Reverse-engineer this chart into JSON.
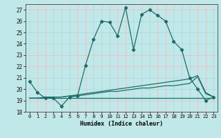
{
  "xlabel": "Humidex (Indice chaleur)",
  "bg_color": "#c0e8e8",
  "grid_color": "#b0d8d8",
  "line_color": "#1a6e6a",
  "x": [
    0,
    1,
    2,
    3,
    4,
    5,
    6,
    7,
    8,
    9,
    10,
    11,
    12,
    13,
    14,
    15,
    16,
    17,
    18,
    19,
    20,
    21,
    22,
    23
  ],
  "y_main": [
    20.7,
    19.7,
    19.2,
    19.2,
    18.5,
    19.3,
    19.4,
    22.1,
    24.4,
    26.0,
    25.9,
    24.7,
    27.2,
    23.5,
    26.6,
    27.0,
    26.5,
    26.0,
    24.2,
    23.5,
    21.0,
    20.0,
    19.0,
    19.3
  ],
  "y_flat": [
    19.2,
    19.2,
    19.2,
    19.2,
    19.2,
    19.2,
    19.2,
    19.2,
    19.2,
    19.2,
    19.2,
    19.2,
    19.2,
    19.2,
    19.2,
    19.2,
    19.2,
    19.2,
    19.2,
    19.2,
    19.2,
    19.2,
    19.2,
    19.2
  ],
  "y_slope1": [
    19.2,
    19.2,
    19.3,
    19.3,
    19.3,
    19.4,
    19.4,
    19.5,
    19.6,
    19.7,
    19.8,
    19.8,
    19.9,
    20.0,
    20.1,
    20.1,
    20.2,
    20.3,
    20.3,
    20.4,
    20.5,
    21.1,
    19.6,
    19.3
  ],
  "y_slope2": [
    19.2,
    19.2,
    19.2,
    19.3,
    19.3,
    19.4,
    19.5,
    19.6,
    19.7,
    19.8,
    19.9,
    20.0,
    20.1,
    20.2,
    20.3,
    20.4,
    20.5,
    20.6,
    20.7,
    20.8,
    20.9,
    21.2,
    19.7,
    19.3
  ],
  "ylim": [
    18,
    27.5
  ],
  "xlim": [
    -0.5,
    23.5
  ],
  "yticks": [
    18,
    19,
    20,
    21,
    22,
    23,
    24,
    25,
    26,
    27
  ],
  "xticks": [
    0,
    1,
    2,
    3,
    4,
    5,
    6,
    7,
    8,
    9,
    10,
    11,
    12,
    13,
    14,
    15,
    16,
    17,
    18,
    19,
    20,
    21,
    22,
    23
  ]
}
